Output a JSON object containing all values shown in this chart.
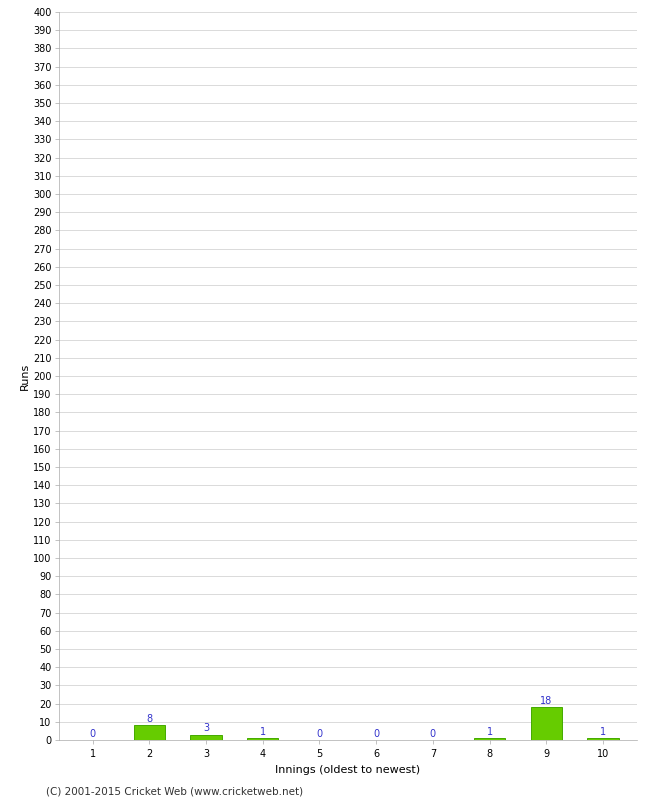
{
  "xlabel": "Innings (oldest to newest)",
  "ylabel": "Runs",
  "categories": [
    "1",
    "2",
    "3",
    "4",
    "5",
    "6",
    "7",
    "8",
    "9",
    "10"
  ],
  "values": [
    0,
    8,
    3,
    1,
    0,
    0,
    0,
    1,
    18,
    1
  ],
  "bar_color": "#66cc00",
  "bar_edge_color": "#44aa00",
  "label_color": "#3333cc",
  "ylim": [
    0,
    400
  ],
  "background_color": "#ffffff",
  "grid_color": "#cccccc",
  "footer": "(C) 2001-2015 Cricket Web (www.cricketweb.net)",
  "tick_fontsize": 7,
  "label_fontsize": 8,
  "value_fontsize": 7
}
